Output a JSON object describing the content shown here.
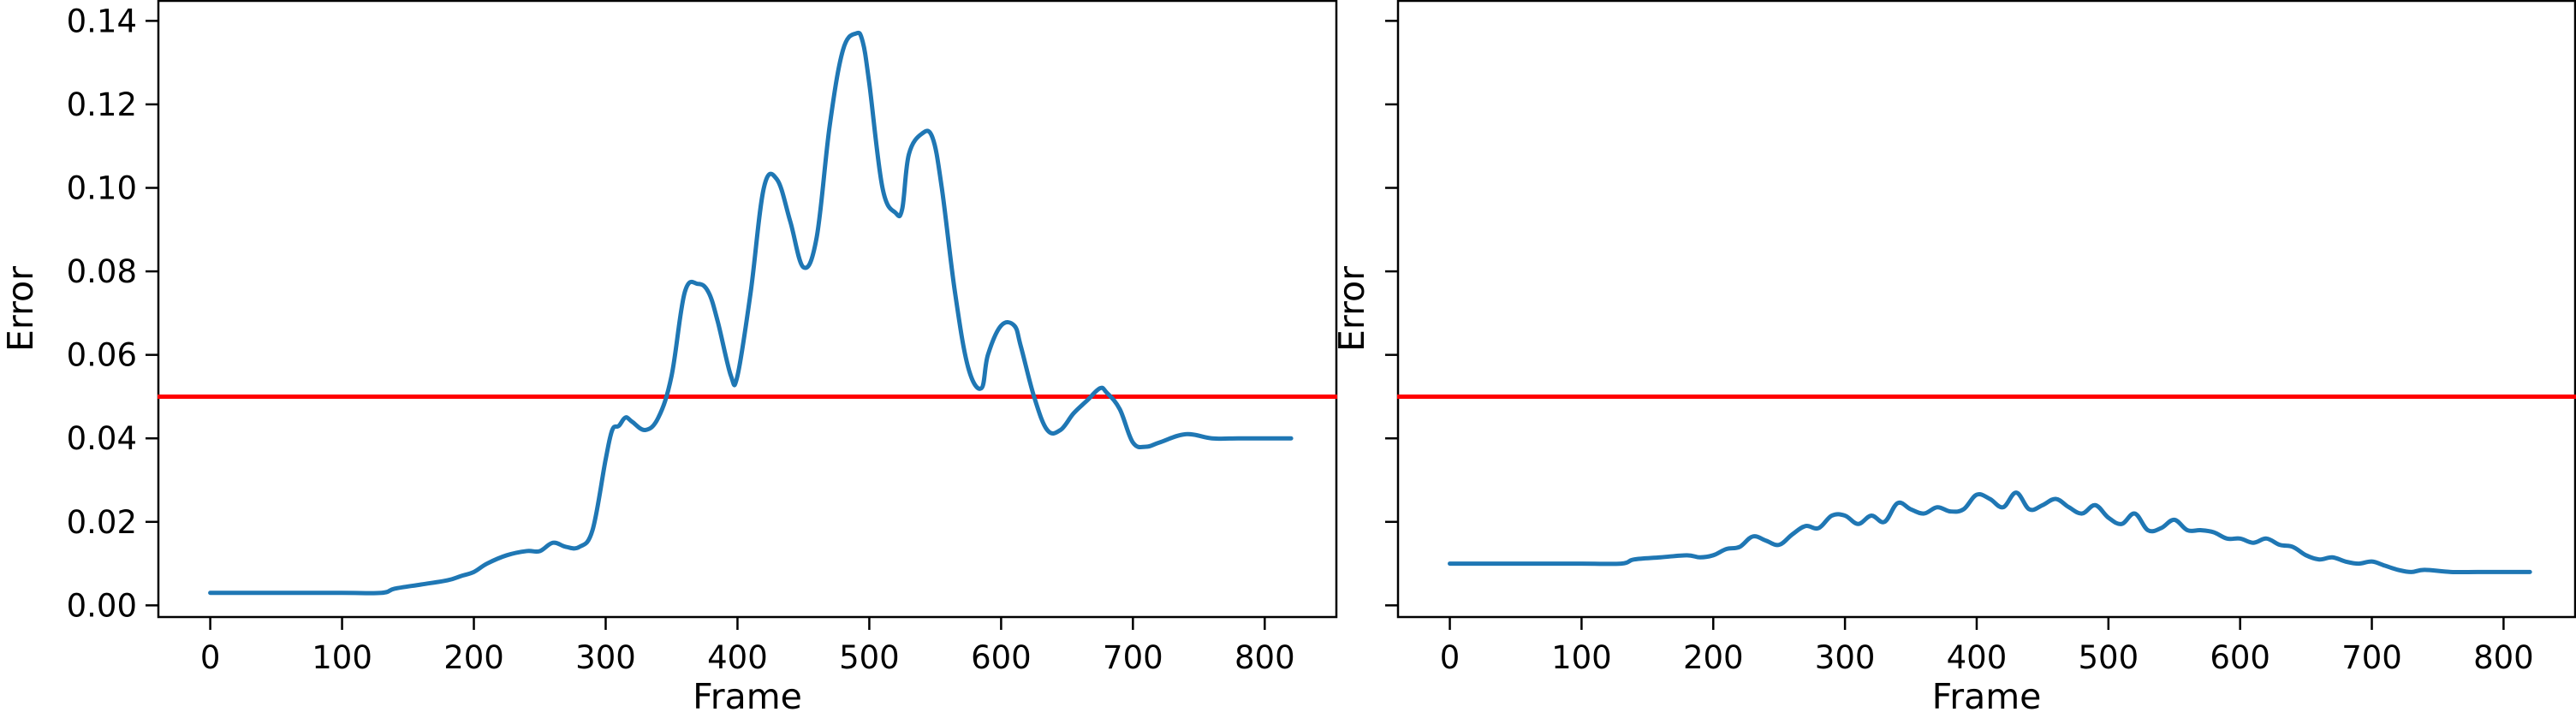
{
  "chart_data": [
    {
      "type": "line",
      "xlabel": "Frame",
      "ylabel": "Error",
      "xlim": [
        -40,
        855
      ],
      "ylim": [
        -0.003,
        0.145
      ],
      "xticks": [
        0,
        100,
        200,
        300,
        400,
        500,
        600,
        700,
        800
      ],
      "yticks": [
        0.0,
        0.02,
        0.04,
        0.06,
        0.08,
        0.1,
        0.12,
        0.14
      ],
      "xtick_labels": [
        "0",
        "100",
        "200",
        "300",
        "400",
        "500",
        "600",
        "700",
        "800"
      ],
      "ytick_labels": [
        "0.00",
        "0.02",
        "0.04",
        "0.06",
        "0.08",
        "0.10",
        "0.12",
        "0.14"
      ],
      "threshold": 0.05,
      "grid": false,
      "series": [
        {
          "color": "#1f77b4",
          "x": [
            0,
            50,
            100,
            130,
            140,
            160,
            180,
            190,
            200,
            210,
            225,
            240,
            250,
            260,
            270,
            280,
            290,
            300,
            305,
            310,
            315,
            320,
            330,
            340,
            350,
            360,
            370,
            378,
            385,
            395,
            400,
            410,
            420,
            430,
            440,
            450,
            460,
            470,
            480,
            490,
            495,
            500,
            510,
            520,
            525,
            530,
            540,
            548,
            555,
            565,
            575,
            585,
            590,
            600,
            610,
            615,
            625,
            635,
            645,
            655,
            665,
            675,
            680,
            690,
            700,
            710,
            720,
            740,
            760,
            780,
            800,
            820
          ],
          "y": [
            0.003,
            0.003,
            0.003,
            0.003,
            0.004,
            0.005,
            0.006,
            0.007,
            0.008,
            0.01,
            0.012,
            0.013,
            0.013,
            0.015,
            0.014,
            0.014,
            0.018,
            0.035,
            0.042,
            0.043,
            0.045,
            0.044,
            0.042,
            0.045,
            0.055,
            0.075,
            0.077,
            0.075,
            0.068,
            0.055,
            0.055,
            0.075,
            0.1,
            0.102,
            0.092,
            0.081,
            0.088,
            0.115,
            0.133,
            0.137,
            0.135,
            0.125,
            0.1,
            0.094,
            0.095,
            0.108,
            0.113,
            0.112,
            0.1,
            0.075,
            0.057,
            0.052,
            0.06,
            0.067,
            0.067,
            0.062,
            0.05,
            0.042,
            0.042,
            0.046,
            0.049,
            0.052,
            0.051,
            0.047,
            0.039,
            0.038,
            0.039,
            0.041,
            0.04,
            0.04,
            0.04,
            0.04
          ]
        }
      ]
    },
    {
      "type": "line",
      "xlabel": "Frame",
      "ylabel": "Error",
      "xlim": [
        -40,
        855
      ],
      "ylim": [
        -0.003,
        0.145
      ],
      "xticks": [
        0,
        100,
        200,
        300,
        400,
        500,
        600,
        700,
        800
      ],
      "yticks": [
        0.0,
        0.02,
        0.04,
        0.06,
        0.08,
        0.1,
        0.12,
        0.14
      ],
      "xtick_labels": [
        "0",
        "100",
        "200",
        "300",
        "400",
        "500",
        "600",
        "700",
        "800"
      ],
      "ytick_labels": [],
      "threshold": 0.05,
      "grid": false,
      "series": [
        {
          "color": "#1f77b4",
          "x": [
            0,
            50,
            100,
            130,
            140,
            160,
            180,
            190,
            200,
            210,
            220,
            230,
            240,
            250,
            260,
            270,
            280,
            290,
            300,
            310,
            320,
            330,
            340,
            350,
            360,
            370,
            380,
            390,
            400,
            410,
            420,
            430,
            440,
            450,
            460,
            470,
            480,
            490,
            500,
            510,
            520,
            530,
            540,
            550,
            560,
            570,
            580,
            590,
            600,
            610,
            620,
            630,
            640,
            650,
            660,
            670,
            680,
            690,
            700,
            710,
            720,
            730,
            740,
            760,
            780,
            800,
            820
          ],
          "y": [
            0.01,
            0.01,
            0.01,
            0.01,
            0.011,
            0.0115,
            0.012,
            0.0115,
            0.012,
            0.0135,
            0.014,
            0.0165,
            0.0155,
            0.0145,
            0.017,
            0.019,
            0.0185,
            0.0215,
            0.0215,
            0.0195,
            0.0215,
            0.02,
            0.0245,
            0.023,
            0.022,
            0.0235,
            0.0225,
            0.023,
            0.0265,
            0.0255,
            0.0235,
            0.027,
            0.023,
            0.024,
            0.0255,
            0.0235,
            0.022,
            0.024,
            0.021,
            0.0195,
            0.022,
            0.018,
            0.0185,
            0.0205,
            0.018,
            0.018,
            0.0175,
            0.016,
            0.016,
            0.015,
            0.016,
            0.0145,
            0.014,
            0.012,
            0.011,
            0.0115,
            0.0105,
            0.01,
            0.0105,
            0.0095,
            0.0085,
            0.008,
            0.0085,
            0.008,
            0.008,
            0.008,
            0.008
          ]
        }
      ]
    }
  ],
  "colors": {
    "line": "#1f77b4",
    "threshold": "#ff0000",
    "axes": "#000000"
  }
}
